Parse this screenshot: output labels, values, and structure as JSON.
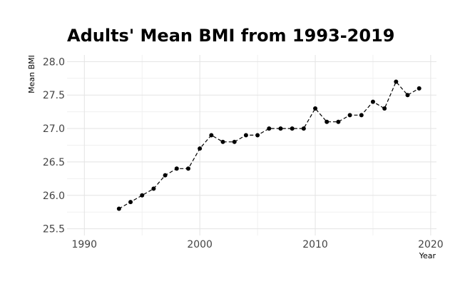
{
  "chart_data": {
    "type": "line",
    "title": "Adults' Mean BMI from 1993-2019",
    "xlabel": "Year",
    "ylabel": "Mean BMI",
    "xlim": [
      1988.5,
      2020.5
    ],
    "ylim": [
      25.4,
      28.1
    ],
    "x_ticks": [
      1990,
      2000,
      2010,
      2020
    ],
    "y_ticks": [
      25.5,
      26.0,
      26.5,
      27.0,
      27.5,
      28.0
    ],
    "x_tick_labels": [
      "1990",
      "2000",
      "2010",
      "2020"
    ],
    "y_tick_labels": [
      "25.5",
      "26.0",
      "26.5",
      "27.0",
      "27.5",
      "28.0"
    ],
    "grid": true,
    "line_style": "dashed",
    "marker": "circle",
    "color": "#000000",
    "x": [
      1993,
      1994,
      1995,
      1996,
      1997,
      1998,
      1999,
      2000,
      2001,
      2002,
      2003,
      2004,
      2005,
      2006,
      2007,
      2008,
      2009,
      2010,
      2011,
      2012,
      2013,
      2014,
      2015,
      2016,
      2017,
      2018,
      2019
    ],
    "y": [
      25.8,
      25.9,
      26.0,
      26.1,
      26.3,
      26.4,
      26.4,
      26.7,
      26.9,
      26.8,
      26.8,
      26.9,
      26.9,
      27.0,
      27.0,
      27.0,
      27.0,
      27.3,
      27.1,
      27.1,
      27.2,
      27.2,
      27.4,
      27.3,
      27.7,
      27.5,
      27.6
    ]
  }
}
